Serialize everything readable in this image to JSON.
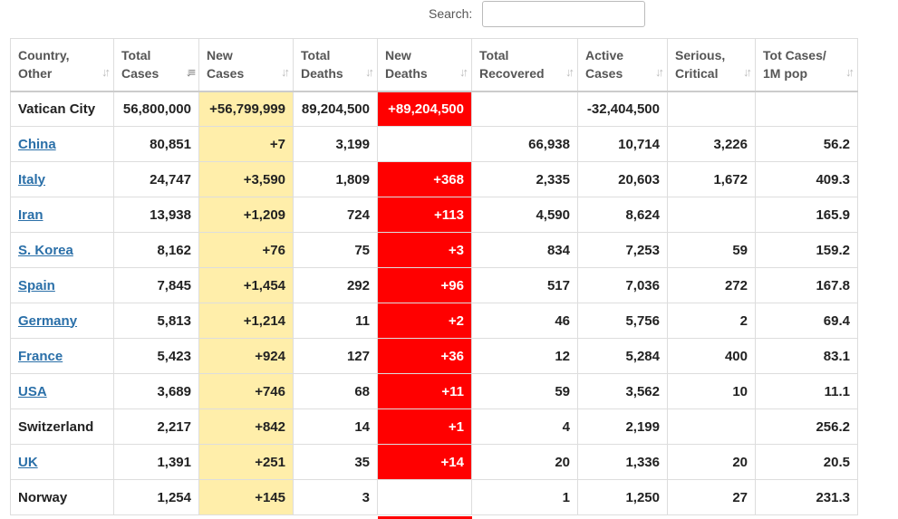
{
  "search": {
    "label": "Search:",
    "value": "",
    "placeholder": ""
  },
  "colors": {
    "new_cases_bg": "#ffeeaa",
    "new_deaths_bg": "#ff0000",
    "link": "#2a6fa8"
  },
  "columns": [
    {
      "label": "Country,\nOther",
      "sort_icon": "sort-icon"
    },
    {
      "label": "Total\nCases",
      "sort_icon": "sort-desc-icon"
    },
    {
      "label": "New\nCases",
      "sort_icon": "sort-icon"
    },
    {
      "label": "Total\nDeaths",
      "sort_icon": "sort-icon"
    },
    {
      "label": "New\nDeaths",
      "sort_icon": "sort-icon"
    },
    {
      "label": "Total\nRecovered",
      "sort_icon": "sort-icon"
    },
    {
      "label": "Active\nCases",
      "sort_icon": "sort-icon"
    },
    {
      "label": "Serious,\nCritical",
      "sort_icon": "sort-icon"
    },
    {
      "label": "Tot Cases/\n1M pop",
      "sort_icon": "sort-icon"
    }
  ],
  "top_row": {
    "country": "Vatican City",
    "total_cases": "56,800,000",
    "new_cases": "+56,799,999",
    "total_deaths": "89,204,500",
    "new_deaths": "+89,204,500",
    "total_recovered": "",
    "active_cases": "-32,404,500",
    "serious_critical": "",
    "per_million": ""
  },
  "rows": [
    {
      "country": "China",
      "link": true,
      "total_cases": "80,851",
      "new_cases": "+7",
      "total_deaths": "3,199",
      "new_deaths": "",
      "total_recovered": "66,938",
      "active_cases": "10,714",
      "serious_critical": "3,226",
      "per_million": "56.2"
    },
    {
      "country": "Italy",
      "link": true,
      "total_cases": "24,747",
      "new_cases": "+3,590",
      "total_deaths": "1,809",
      "new_deaths": "+368",
      "total_recovered": "2,335",
      "active_cases": "20,603",
      "serious_critical": "1,672",
      "per_million": "409.3"
    },
    {
      "country": "Iran",
      "link": true,
      "total_cases": "13,938",
      "new_cases": "+1,209",
      "total_deaths": "724",
      "new_deaths": "+113",
      "total_recovered": "4,590",
      "active_cases": "8,624",
      "serious_critical": "",
      "per_million": "165.9"
    },
    {
      "country": "S. Korea",
      "link": true,
      "total_cases": "8,162",
      "new_cases": "+76",
      "total_deaths": "75",
      "new_deaths": "+3",
      "total_recovered": "834",
      "active_cases": "7,253",
      "serious_critical": "59",
      "per_million": "159.2"
    },
    {
      "country": "Spain",
      "link": true,
      "total_cases": "7,845",
      "new_cases": "+1,454",
      "total_deaths": "292",
      "new_deaths": "+96",
      "total_recovered": "517",
      "active_cases": "7,036",
      "serious_critical": "272",
      "per_million": "167.8"
    },
    {
      "country": "Germany",
      "link": true,
      "total_cases": "5,813",
      "new_cases": "+1,214",
      "total_deaths": "11",
      "new_deaths": "+2",
      "total_recovered": "46",
      "active_cases": "5,756",
      "serious_critical": "2",
      "per_million": "69.4"
    },
    {
      "country": "France",
      "link": true,
      "total_cases": "5,423",
      "new_cases": "+924",
      "total_deaths": "127",
      "new_deaths": "+36",
      "total_recovered": "12",
      "active_cases": "5,284",
      "serious_critical": "400",
      "per_million": "83.1"
    },
    {
      "country": "USA",
      "link": true,
      "total_cases": "3,689",
      "new_cases": "+746",
      "total_deaths": "68",
      "new_deaths": "+11",
      "total_recovered": "59",
      "active_cases": "3,562",
      "serious_critical": "10",
      "per_million": "11.1"
    },
    {
      "country": "Switzerland",
      "link": false,
      "total_cases": "2,217",
      "new_cases": "+842",
      "total_deaths": "14",
      "new_deaths": "+1",
      "total_recovered": "4",
      "active_cases": "2,199",
      "serious_critical": "",
      "per_million": "256.2"
    },
    {
      "country": "UK",
      "link": true,
      "total_cases": "1,391",
      "new_cases": "+251",
      "total_deaths": "35",
      "new_deaths": "+14",
      "total_recovered": "20",
      "active_cases": "1,336",
      "serious_critical": "20",
      "per_million": "20.5"
    },
    {
      "country": "Norway",
      "link": false,
      "total_cases": "1,254",
      "new_cases": "+145",
      "total_deaths": "3",
      "new_deaths": "",
      "total_recovered": "1",
      "active_cases": "1,250",
      "serious_critical": "27",
      "per_million": "231.3"
    }
  ]
}
